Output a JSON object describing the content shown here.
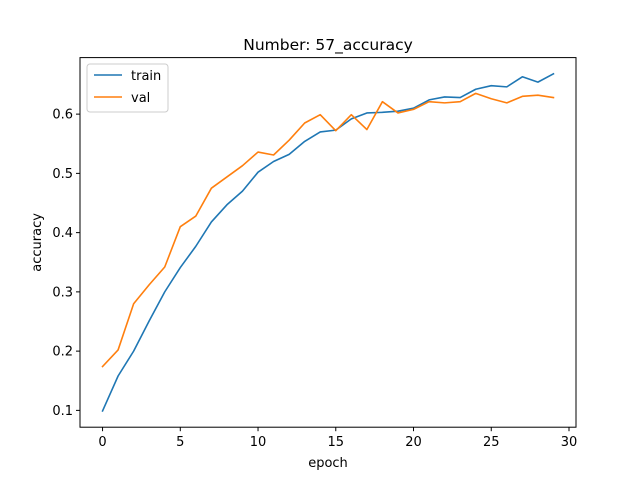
{
  "chart_data": {
    "type": "line",
    "title": "Number: 57_accuracy",
    "xlabel": "epoch",
    "ylabel": "accuracy",
    "xlim": [
      -1.45,
      30.45
    ],
    "ylim": [
      0.0716,
      0.6954
    ],
    "xticks": [
      0,
      5,
      10,
      15,
      20,
      25,
      30
    ],
    "yticks": [
      0.1,
      0.2,
      0.3,
      0.4,
      0.5,
      0.6
    ],
    "grid": false,
    "legend_position": "upper-left",
    "x": [
      0,
      1,
      2,
      3,
      4,
      5,
      6,
      7,
      8,
      9,
      10,
      11,
      12,
      13,
      14,
      15,
      16,
      17,
      18,
      19,
      20,
      21,
      22,
      23,
      24,
      25,
      26,
      27,
      28,
      29
    ],
    "series": [
      {
        "name": "train",
        "color": "#1f77b4",
        "values": [
          0.099,
          0.158,
          0.2,
          0.251,
          0.3,
          0.341,
          0.377,
          0.418,
          0.447,
          0.47,
          0.502,
          0.52,
          0.532,
          0.554,
          0.57,
          0.573,
          0.592,
          0.602,
          0.603,
          0.605,
          0.61,
          0.624,
          0.629,
          0.628,
          0.642,
          0.648,
          0.646,
          0.663,
          0.654,
          0.668
        ]
      },
      {
        "name": "val",
        "color": "#ff7f0e",
        "values": [
          0.174,
          0.202,
          0.28,
          0.312,
          0.342,
          0.41,
          0.428,
          0.475,
          0.494,
          0.513,
          0.536,
          0.531,
          0.556,
          0.585,
          0.599,
          0.572,
          0.599,
          0.574,
          0.621,
          0.602,
          0.608,
          0.621,
          0.619,
          0.621,
          0.635,
          0.626,
          0.619,
          0.63,
          0.632,
          0.628
        ]
      }
    ]
  }
}
